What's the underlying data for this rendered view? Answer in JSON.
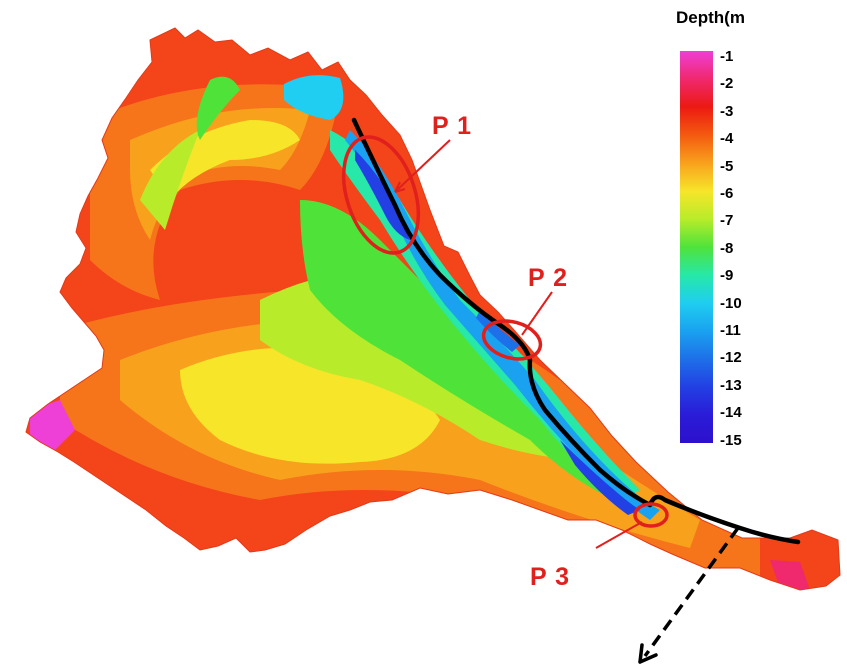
{
  "legend": {
    "title": "Depth(m",
    "labels": [
      "-1",
      "-2",
      "-3",
      "-4",
      "-5",
      "-6",
      "-7",
      "-8",
      "-9",
      "-10",
      "-11",
      "-12",
      "-13",
      "-14",
      "-15"
    ],
    "colors": [
      "#ee3fd6",
      "#f0286e",
      "#ec1a12",
      "#f45a0f",
      "#f8a11c",
      "#f7e52a",
      "#b8ec2a",
      "#4fe33a",
      "#27e8a8",
      "#1fcef0",
      "#1aa2f0",
      "#1d70e8",
      "#2240e3",
      "#2a1cd8",
      "#2d10cc"
    ]
  },
  "callouts": [
    {
      "label": "P 1"
    },
    {
      "label": "P 2"
    },
    {
      "label": "P 3"
    }
  ],
  "colors": {
    "callout": "#e0201c",
    "channel": "#000000"
  }
}
